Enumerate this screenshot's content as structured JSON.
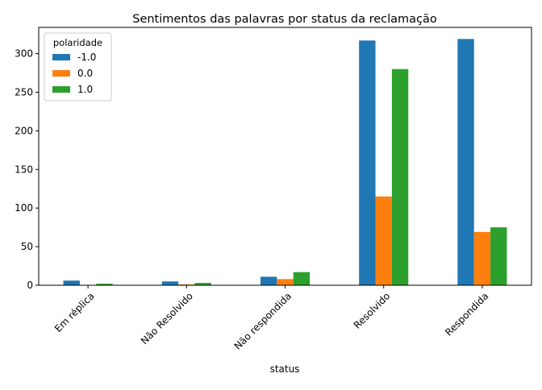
{
  "chart_data": {
    "type": "bar",
    "title": "Sentimentos das palavras por status da reclamação",
    "xlabel": "status",
    "ylabel": "",
    "categories": [
      "Em réplica",
      "Não Resolvido",
      "Não respondida",
      "Resolvido",
      "Respondida"
    ],
    "series": [
      {
        "name": "-1.0",
        "color": "#1f77b4",
        "values": [
          6,
          5,
          11,
          317,
          319
        ]
      },
      {
        "name": "0.0",
        "color": "#ff7f0e",
        "values": [
          0,
          1,
          8,
          115,
          69
        ]
      },
      {
        "name": "1.0",
        "color": "#2ca02c",
        "values": [
          2,
          3,
          17,
          280,
          75
        ]
      }
    ],
    "yticks": [
      0,
      50,
      100,
      150,
      200,
      250,
      300
    ],
    "ylim": [
      0,
      334
    ],
    "legend": {
      "title": "polaridade",
      "placement": "top-left"
    },
    "grid": false
  }
}
